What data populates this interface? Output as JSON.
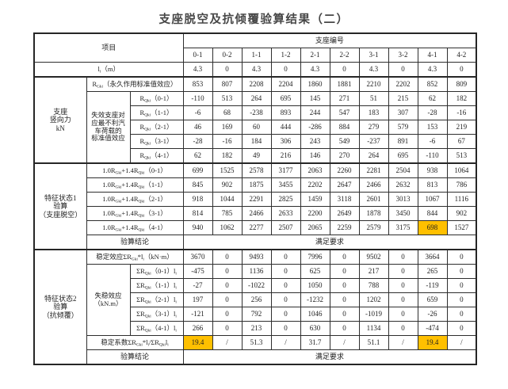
{
  "title": "支座脱空及抗倾覆验算结果（二）",
  "header": {
    "item_label": "项目",
    "bearing_group_label": "支座编号",
    "bearing_ids": [
      "0-1",
      "0-2",
      "1-1",
      "1-2",
      "2-1",
      "2-2",
      "3-1",
      "3-2",
      "4-1",
      "4-2"
    ]
  },
  "li_row": {
    "label": "l~i~（m）",
    "values": [
      "4.3",
      "0",
      "4.3",
      "0",
      "4.3",
      "0",
      "4.3",
      "0",
      "4.3",
      "0"
    ]
  },
  "vf": {
    "side_label": "支座\n竖向力\nkN",
    "rgki": {
      "label": "R~Gki~（永久作用标准值效应）",
      "values": [
        "853",
        "807",
        "2208",
        "2204",
        "1860",
        "1881",
        "2210",
        "2202",
        "852",
        "809"
      ]
    },
    "group_label": "失效支座对\n应最不利汽\n车荷载的\n标准值效应",
    "rows": [
      {
        "label": "R~Qki~（0-1）",
        "values": [
          "-110",
          "513",
          "264",
          "695",
          "145",
          "271",
          "51",
          "215",
          "62",
          "182"
        ]
      },
      {
        "label": "R~Qki~（1-1）",
        "values": [
          "-6",
          "68",
          "-238",
          "893",
          "244",
          "547",
          "183",
          "307",
          "-28",
          "-16"
        ]
      },
      {
        "label": "R~Qki~（2-1）",
        "values": [
          "46",
          "169",
          "60",
          "444",
          "-286",
          "884",
          "279",
          "579",
          "153",
          "219"
        ]
      },
      {
        "label": "R~Qki~（3-1）",
        "values": [
          "-28",
          "-16",
          "184",
          "306",
          "243",
          "549",
          "-237",
          "891",
          "-6",
          "67"
        ]
      },
      {
        "label": "R~Qki~（4-1）",
        "values": [
          "62",
          "182",
          "49",
          "216",
          "146",
          "270",
          "264",
          "695",
          "-110",
          "513"
        ]
      }
    ]
  },
  "s1": {
    "side_label": "特征状态1\n验算\n（支座脱空）",
    "rows": [
      {
        "label": "1.0R~Gki~+1.4R~Qki~（0-1）",
        "values": [
          "699",
          "1525",
          "2578",
          "3177",
          "2063",
          "2260",
          "2281",
          "2504",
          "938",
          "1064"
        ]
      },
      {
        "label": "1.0R~Gki~+1.4R~Qki~（1-1）",
        "values": [
          "845",
          "902",
          "1875",
          "3455",
          "2202",
          "2647",
          "2466",
          "2632",
          "813",
          "786"
        ]
      },
      {
        "label": "1.0R~Gki~+1.4R~Qki~（2-1）",
        "values": [
          "918",
          "1044",
          "2291",
          "2825",
          "1459",
          "3118",
          "2601",
          "3013",
          "1067",
          "1116"
        ]
      },
      {
        "label": "1.0R~Gki~+1.4R~Qki~（3-1）",
        "values": [
          "814",
          "785",
          "2466",
          "2633",
          "2200",
          "2649",
          "1878",
          "3450",
          "844",
          "902"
        ]
      },
      {
        "label": "1.0R~Gki~+1.4R~Qki~（4-1）",
        "values": [
          "940",
          "1062",
          "2277",
          "2507",
          "2065",
          "2259",
          "2579",
          "3175",
          "698",
          "1527"
        ]
      }
    ],
    "conclusion_label": "验算结论",
    "conclusion_value": "满足要求"
  },
  "s2": {
    "side_label": "特征状态2\n验算\n（抗倾覆）",
    "stable": {
      "label": "稳定效应ΣR~Gki~*l~i~（kN·m）",
      "values": [
        "3670",
        "0",
        "9493",
        "0",
        "7996",
        "0",
        "9502",
        "0",
        "3664",
        "0"
      ]
    },
    "group_label": "失稳效应\n（kN.m）",
    "rows": [
      {
        "label": "ΣR~Qki~（0-1）l~i~",
        "values": [
          "-475",
          "0",
          "1136",
          "0",
          "625",
          "0",
          "217",
          "0",
          "265",
          "0"
        ]
      },
      {
        "label": "ΣR~Qki~（1-1）l~i~",
        "values": [
          "-27",
          "0",
          "-1022",
          "0",
          "1050",
          "0",
          "788",
          "0",
          "-119",
          "0"
        ]
      },
      {
        "label": "ΣR~Qki~（2-1）l~i~",
        "values": [
          "197",
          "0",
          "256",
          "0",
          "-1232",
          "0",
          "1202",
          "0",
          "659",
          "0"
        ]
      },
      {
        "label": "ΣR~Qki~（3-1）l~i~",
        "values": [
          "-121",
          "0",
          "792",
          "0",
          "1046",
          "0",
          "-1019",
          "0",
          "-26",
          "0"
        ]
      },
      {
        "label": "ΣR~Qki~（4-1）l~i~",
        "values": [
          "266",
          "0",
          "213",
          "0",
          "630",
          "0",
          "1134",
          "0",
          "-474",
          "0"
        ]
      }
    ],
    "coef": {
      "label": "稳定系数ΣR~Gki~*l~i~/ΣR~Qki~l~i~",
      "values": [
        "19.4",
        "/",
        "51.3",
        "/",
        "31.7",
        "/",
        "51.1",
        "/",
        "19.4",
        "/"
      ]
    },
    "conclusion_label": "验算结论",
    "conclusion_value": "满足要求"
  },
  "colors": {
    "highlight": "#FFC000"
  }
}
